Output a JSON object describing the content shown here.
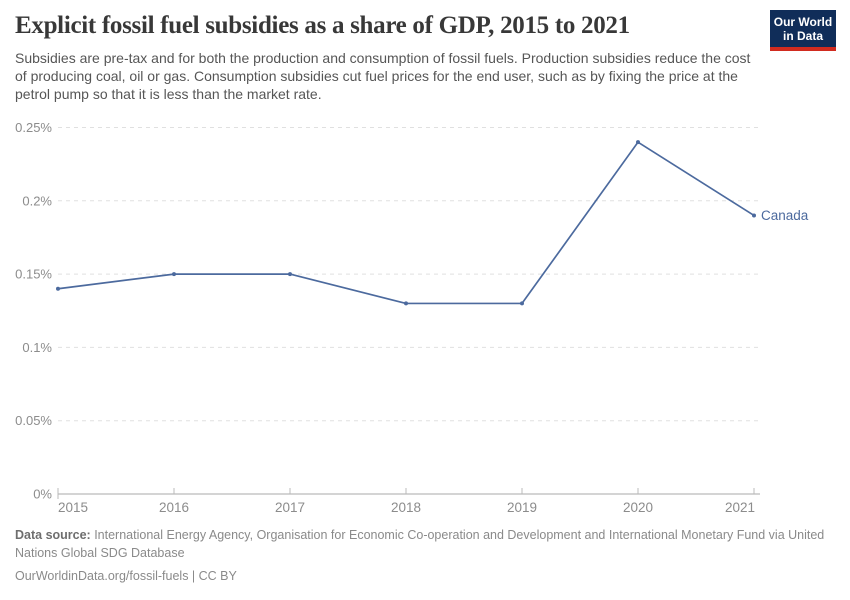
{
  "header": {
    "title": "Explicit fossil fuel subsidies as a share of GDP, 2015 to 2021",
    "subtitle": "Subsidies are pre-tax and for both the production and consumption of fossil fuels. Production subsidies reduce the cost of producing coal, oil or gas. Consumption subsidies cut fuel prices for the end user, such as by fixing the price at the petrol pump so that it is less than the market rate.",
    "logo": {
      "line1": "Our World",
      "line2": "in Data",
      "bg_color": "#102d59",
      "accent_color": "#d12b1f",
      "text_color": "#ffffff"
    }
  },
  "chart_data": {
    "type": "line",
    "x": [
      2015,
      2016,
      2017,
      2018,
      2019,
      2020,
      2021
    ],
    "xtick_labels": [
      "2015",
      "2016",
      "2017",
      "2018",
      "2019",
      "2020",
      "2021"
    ],
    "series": [
      {
        "name": "Canada",
        "values": [
          0.14,
          0.15,
          0.15,
          0.13,
          0.13,
          0.24,
          0.19
        ],
        "color": "#4c6a9e",
        "end_label": "Canada"
      }
    ],
    "ylim": [
      0,
      0.25
    ],
    "yticks": [
      0,
      0.05,
      0.1,
      0.15,
      0.2,
      0.25
    ],
    "ytick_labels": [
      "0%",
      "0.05%",
      "0.1%",
      "0.15%",
      "0.2%",
      "0.25%"
    ],
    "unit": "%",
    "grid": "horizontal-dashed",
    "legend_position": "end-of-line-label",
    "colors": {
      "grid": "#e0e0e0",
      "axis_line": "#a8a8a8",
      "tick": "#bbbbbb",
      "axis_text": "#8c8c8c"
    }
  },
  "footer": {
    "datasource_label": "Data source:",
    "datasource_text": " International Energy Agency, Organisation for Economic Co-operation and Development and International Monetary Fund via United Nations Global SDG Database",
    "attribution": "OurWorldinData.org/fossil-fuels | CC BY"
  }
}
